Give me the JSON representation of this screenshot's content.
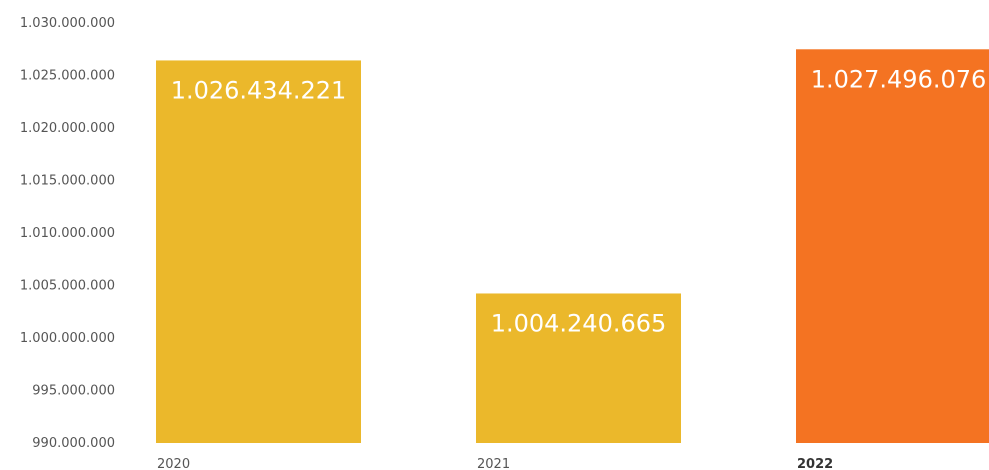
{
  "chart_data": {
    "type": "bar",
    "categories": [
      "2020",
      "2021",
      "2022"
    ],
    "values": [
      1026434221,
      1004240665,
      1027496076
    ],
    "data_labels": [
      "1.026.434.221",
      "1.004.240.665",
      "1.027.496.076"
    ],
    "bold_categories": [
      "2022"
    ],
    "colors": [
      "#EBB82B",
      "#EBB82B",
      "#F47322"
    ],
    "ylim": [
      990000000,
      1030000000
    ],
    "yticks": [
      990000000,
      995000000,
      1000000000,
      1005000000,
      1010000000,
      1015000000,
      1020000000,
      1025000000,
      1030000000
    ],
    "ytick_labels": [
      "990.000.000",
      "995.000.000",
      "1.000.000.000",
      "1.005.000.000",
      "1.010.000.000",
      "1.015.000.000",
      "1.020.000.000",
      "1.025.000.000",
      "1.030.000.000"
    ],
    "grid": false,
    "legend": "none"
  }
}
